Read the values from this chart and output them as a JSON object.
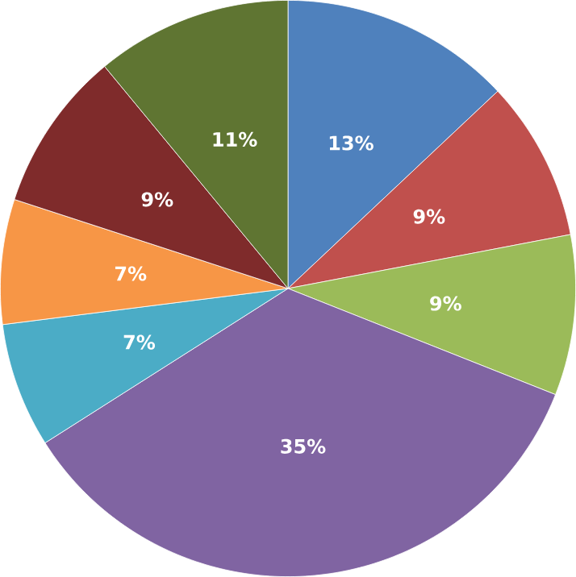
{
  "chart_data": {
    "type": "pie",
    "categories": [
      null,
      null,
      null,
      null,
      null,
      null,
      null,
      null
    ],
    "values": [
      13,
      9,
      9,
      35,
      7,
      7,
      9,
      11
    ],
    "value_labels": [
      "13%",
      "9%",
      "9%",
      "35%",
      "7%",
      "7%",
      "9%",
      "11%"
    ],
    "colors": [
      "#4f81bd",
      "#c0504d",
      "#9bbb59",
      "#8064a2",
      "#4bacc6",
      "#f79646",
      "#7f2b2b",
      "#5f7532"
    ]
  }
}
